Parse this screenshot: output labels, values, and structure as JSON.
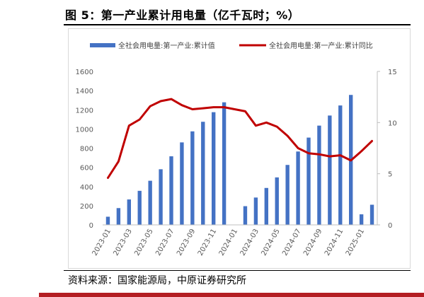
{
  "page": {
    "title": "图 5：第一产业累计用电量（亿千瓦时；%）",
    "source": "资料来源：国家能源局，中原证券研究所"
  },
  "colors": {
    "bar": "#4472c4",
    "line": "#c00000",
    "text": "#595959"
  },
  "chart_data": {
    "type": "bar+line",
    "categories": [
      "2023-01",
      "2023-02",
      "2023-03",
      "2023-04",
      "2023-05",
      "2023-06",
      "2023-07",
      "2023-08",
      "2023-09",
      "2023-10",
      "2023-11",
      "2023-12",
      "2024-01",
      "2024-02",
      "2024-03",
      "2024-04",
      "2024-05",
      "2024-06",
      "2024-07",
      "2024-08",
      "2024-09",
      "2024-10",
      "2024-11",
      "2024-12",
      "2025-01",
      "2025-02"
    ],
    "x_tick_labels": [
      "2023-01",
      "2023-03",
      "2023-05",
      "2023-07",
      "2023-09",
      "2023-11",
      "2024-01",
      "2024-03",
      "2024-05",
      "2024-07",
      "2024-09",
      "2024-11",
      "2025-01"
    ],
    "series": [
      {
        "name": "全社会用电量:第一产业:累计值",
        "type": "bar",
        "axis": "left",
        "values": [
          85,
          175,
          265,
          355,
          460,
          580,
          715,
          860,
          975,
          1075,
          1175,
          1278,
          null,
          195,
          285,
          385,
          495,
          625,
          765,
          910,
          1035,
          1140,
          1245,
          1355,
          110,
          210
        ]
      },
      {
        "name": "全社会用电量:第一产业:累计同比",
        "type": "line",
        "axis": "right",
        "values": [
          4.6,
          6.2,
          9.7,
          10.3,
          11.6,
          12.1,
          12.3,
          11.7,
          11.3,
          11.4,
          11.5,
          11.5,
          11.3,
          11.1,
          9.7,
          10.0,
          9.6,
          8.7,
          7.5,
          7.0,
          6.9,
          6.7,
          6.8,
          6.3,
          7.2,
          8.2
        ]
      }
    ],
    "left_axis": {
      "min": 0,
      "max": 1600,
      "ticks": [
        "0",
        "200",
        "400",
        "600",
        "800",
        "1000",
        "1200",
        "1400",
        "1600"
      ]
    },
    "right_axis": {
      "min": 0,
      "max": 15,
      "ticks": [
        "0",
        "5",
        "10",
        "15"
      ]
    },
    "legend_position": "top",
    "grid": false
  }
}
